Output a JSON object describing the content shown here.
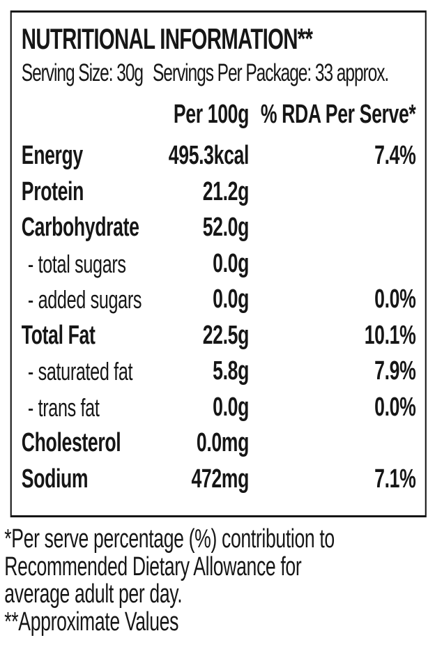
{
  "panel": {
    "title": "NUTRITIONAL INFORMATION**",
    "serving_size": "Serving Size: 30g",
    "servings_per_package": "Servings Per Package: 33 approx.",
    "columns": {
      "per_100g": "Per 100g",
      "rda_per_serve": "% RDA Per Serve*"
    },
    "rows": [
      {
        "name": "Energy",
        "per_100g": "495.3kcal",
        "rda": "7.4%",
        "style": "main"
      },
      {
        "name": "Protein",
        "per_100g": "21.2g",
        "rda": "",
        "style": "main"
      },
      {
        "name": "Carbohydrate",
        "per_100g": "52.0g",
        "rda": "",
        "style": "main"
      },
      {
        "name": "- total sugars",
        "per_100g": "0.0g",
        "rda": "",
        "style": "sub"
      },
      {
        "name": "- added sugars",
        "per_100g": "0.0g",
        "rda": "0.0%",
        "style": "sub"
      },
      {
        "name": "Total Fat",
        "per_100g": "22.5g",
        "rda": "10.1%",
        "style": "main"
      },
      {
        "name": "- saturated fat",
        "per_100g": "5.8g",
        "rda": "7.9%",
        "style": "sub"
      },
      {
        "name": "- trans fat",
        "per_100g": "0.0g",
        "rda": "0.0%",
        "style": "sub"
      },
      {
        "name": "Cholesterol",
        "per_100g": "0.0mg",
        "rda": "",
        "style": "main"
      },
      {
        "name": "Sodium",
        "per_100g": "472mg",
        "rda": "7.1%",
        "style": "main"
      }
    ],
    "colors": {
      "text": "#161616",
      "border": "#161616",
      "background": "#ffffff"
    }
  },
  "footnotes": {
    "lines": [
      "*Per serve percentage (%) contribution to",
      "Recommended Dietary Allowance for",
      "average adult per day.",
      "**Approximate Values"
    ]
  }
}
